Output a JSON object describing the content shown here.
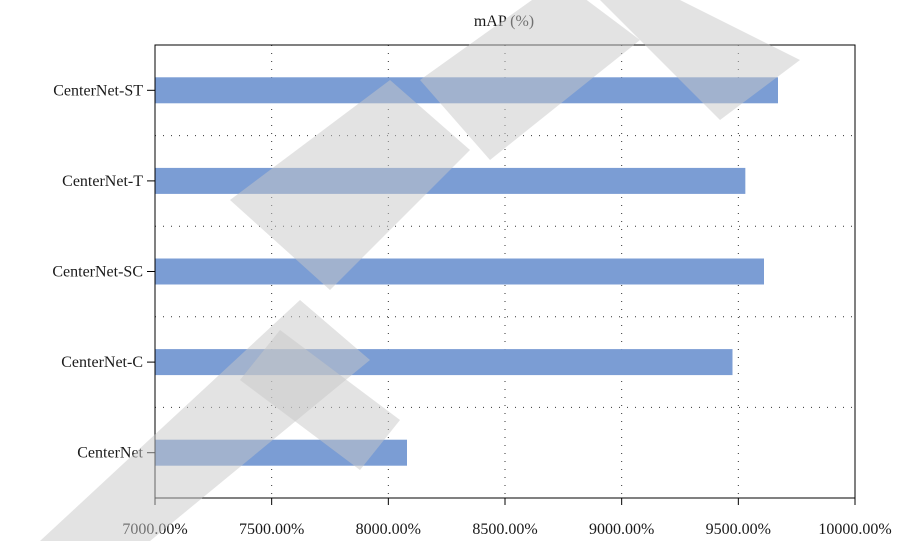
{
  "chart_data": {
    "type": "bar",
    "orientation": "horizontal",
    "title": "mAP (%)",
    "xlabel": "",
    "ylabel": "",
    "categories": [
      "CenterNet-ST",
      "CenterNet-T",
      "CenterNet-SC",
      "CenterNet-C",
      "CenterNet"
    ],
    "values": [
      9670,
      9530,
      9610,
      9475,
      8080
    ],
    "xlim": [
      7000,
      10000
    ],
    "x_ticks": [
      7000,
      7500,
      8000,
      8500,
      9000,
      9500,
      10000
    ],
    "x_tick_labels": [
      "7000.00%",
      "7500.00%",
      "8000.00%",
      "8500.00%",
      "9000.00%",
      "9500.00%",
      "10000.00%"
    ],
    "grid": true,
    "bar_color": "#7b9dd4"
  }
}
